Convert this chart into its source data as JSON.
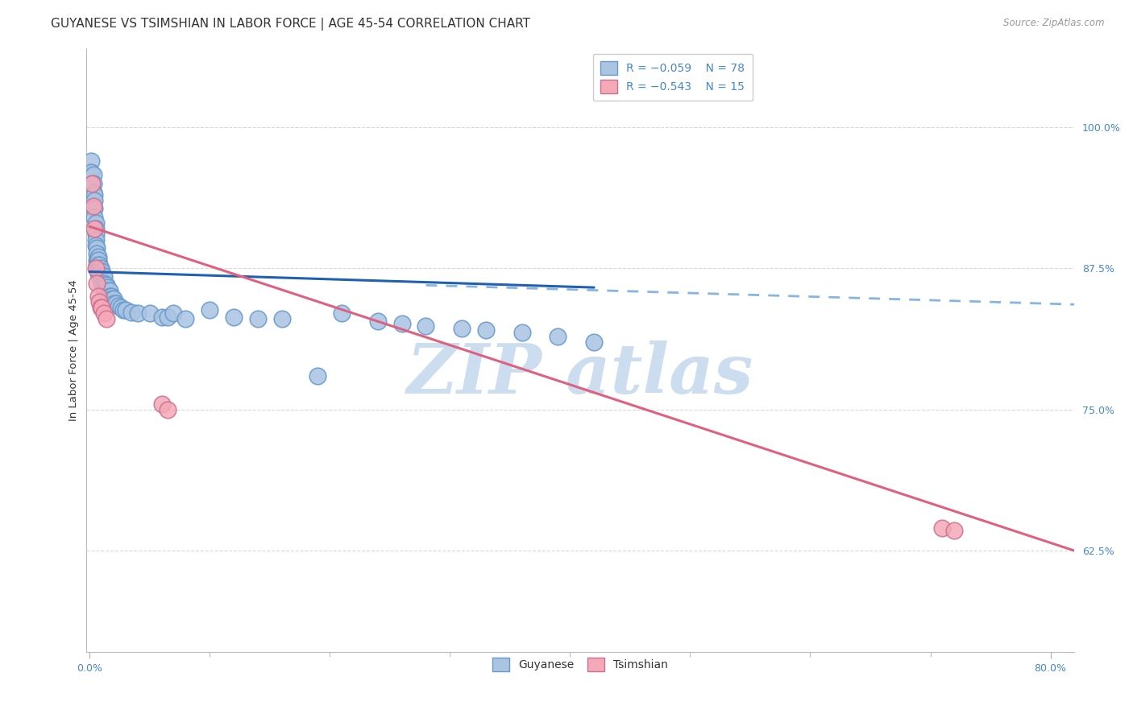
{
  "title": "GUYANESE VS TSIMSHIAN IN LABOR FORCE | AGE 45-54 CORRELATION CHART",
  "source_text": "Source: ZipAtlas.com",
  "ylabel": "In Labor Force | Age 45-54",
  "y_ticks": [
    0.625,
    0.75,
    0.875,
    1.0
  ],
  "y_tick_labels": [
    "62.5%",
    "75.0%",
    "87.5%",
    "100.0%"
  ],
  "xlim": [
    -0.003,
    0.82
  ],
  "ylim": [
    0.535,
    1.07
  ],
  "guyanese_color": "#aac4e2",
  "tsimshian_color": "#f4a8b8",
  "blue_line_color": "#2060b0",
  "pink_line_color": "#e06080",
  "dashed_line_color": "#88b4e0",
  "watermark_color": "#ccddf0",
  "background_color": "#ffffff",
  "grid_color": "#d8d8d8",
  "tick_color": "#4488cc",
  "title_fontsize": 11,
  "axis_fontsize": 9.5,
  "tick_fontsize": 9,
  "legend_fontsize": 10,
  "guyanese_x": [
    0.001,
    0.001,
    0.002,
    0.003,
    0.003,
    0.003,
    0.004,
    0.004,
    0.004,
    0.004,
    0.005,
    0.005,
    0.005,
    0.005,
    0.005,
    0.006,
    0.006,
    0.006,
    0.006,
    0.007,
    0.007,
    0.007,
    0.007,
    0.007,
    0.008,
    0.008,
    0.008,
    0.009,
    0.009,
    0.009,
    0.01,
    0.01,
    0.01,
    0.011,
    0.011,
    0.012,
    0.012,
    0.012,
    0.013,
    0.013,
    0.014,
    0.014,
    0.015,
    0.015,
    0.016,
    0.017,
    0.017,
    0.018,
    0.019,
    0.02,
    0.02,
    0.022,
    0.024,
    0.026,
    0.028,
    0.03,
    0.035,
    0.04,
    0.05,
    0.06,
    0.065,
    0.07,
    0.08,
    0.1,
    0.12,
    0.14,
    0.16,
    0.19,
    0.21,
    0.24,
    0.26,
    0.28,
    0.31,
    0.33,
    0.36,
    0.39,
    0.42
  ],
  "guyanese_y": [
    0.97,
    0.96,
    0.935,
    0.958,
    0.95,
    0.942,
    0.94,
    0.935,
    0.928,
    0.92,
    0.915,
    0.91,
    0.905,
    0.9,
    0.895,
    0.893,
    0.888,
    0.882,
    0.878,
    0.885,
    0.882,
    0.878,
    0.875,
    0.87,
    0.878,
    0.874,
    0.87,
    0.875,
    0.87,
    0.865,
    0.872,
    0.868,
    0.862,
    0.868,
    0.862,
    0.868,
    0.862,
    0.858,
    0.86,
    0.855,
    0.86,
    0.855,
    0.858,
    0.854,
    0.855,
    0.855,
    0.85,
    0.85,
    0.848,
    0.848,
    0.844,
    0.844,
    0.842,
    0.84,
    0.838,
    0.838,
    0.836,
    0.835,
    0.835,
    0.832,
    0.832,
    0.835,
    0.83,
    0.838,
    0.832,
    0.83,
    0.83,
    0.78,
    0.835,
    0.828,
    0.826,
    0.824,
    0.822,
    0.82,
    0.818,
    0.815,
    0.81
  ],
  "tsimshian_x": [
    0.002,
    0.003,
    0.004,
    0.005,
    0.006,
    0.007,
    0.008,
    0.009,
    0.01,
    0.012,
    0.014,
    0.06,
    0.065,
    0.71,
    0.72
  ],
  "tsimshian_y": [
    0.95,
    0.93,
    0.91,
    0.875,
    0.862,
    0.85,
    0.845,
    0.84,
    0.84,
    0.835,
    0.83,
    0.755,
    0.75,
    0.645,
    0.643
  ],
  "blue_trend_x": [
    0.0,
    0.42
  ],
  "blue_trend_y": [
    0.872,
    0.858
  ],
  "dashed_trend_x": [
    0.28,
    0.82
  ],
  "dashed_trend_y": [
    0.86,
    0.843
  ],
  "pink_trend_x": [
    0.0,
    0.82
  ],
  "pink_trend_y": [
    0.912,
    0.625
  ]
}
